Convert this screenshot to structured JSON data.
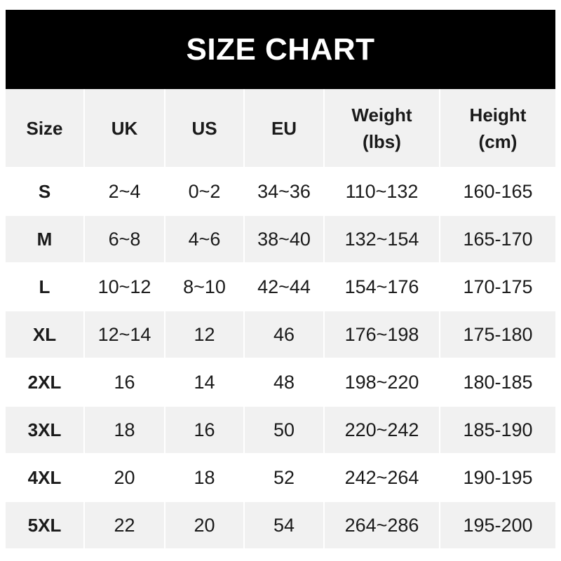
{
  "title": "SIZE CHART",
  "columns": [
    "Size",
    "UK",
    "US",
    "EU",
    "Weight\n(lbs)",
    "Height\n(cm)"
  ],
  "rows": [
    [
      "S",
      "2~4",
      "0~2",
      "34~36",
      "110~132",
      "160-165"
    ],
    [
      "M",
      "6~8",
      "4~6",
      "38~40",
      "132~154",
      "165-170"
    ],
    [
      "L",
      "10~12",
      "8~10",
      "42~44",
      "154~176",
      "170-175"
    ],
    [
      "XL",
      "12~14",
      "12",
      "46",
      "176~198",
      "175-180"
    ],
    [
      "2XL",
      "16",
      "14",
      "48",
      "198~220",
      "180-185"
    ],
    [
      "3XL",
      "18",
      "16",
      "50",
      "220~242",
      "185-190"
    ],
    [
      "4XL",
      "20",
      "18",
      "52",
      "242~264",
      "190-195"
    ],
    [
      "5XL",
      "22",
      "20",
      "54",
      "264~286",
      "195-200"
    ]
  ]
}
